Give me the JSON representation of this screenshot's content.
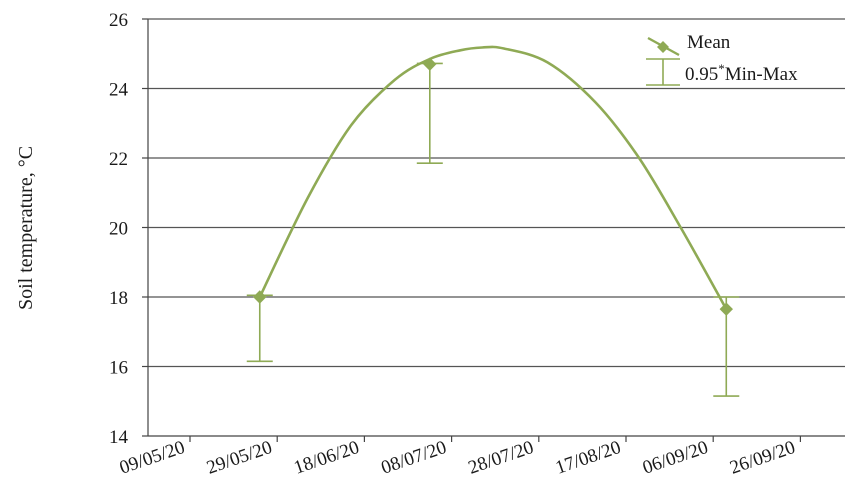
{
  "chart_data": {
    "type": "line",
    "title": "",
    "xlabel": "",
    "ylabel": "Soil temperature, °C",
    "x_tick_labels": [
      "09/05/20",
      "29/05/20",
      "18/06/20",
      "08/07/20",
      "28/07/20",
      "17/08/20",
      "06/09/20",
      "26/09/20"
    ],
    "ylim": [
      14,
      26
    ],
    "y_ticks": [
      14,
      16,
      18,
      20,
      22,
      24,
      26
    ],
    "grid": "horizontal",
    "legend_position": "top-right",
    "legend": [
      {
        "label": "Mean"
      },
      {
        "label_main": "0.95",
        "label_sup": "*",
        "label_rest": "Min-Max"
      }
    ],
    "series": [
      {
        "name": "Mean",
        "x": [
          "2020-05-25",
          "2020-07-03",
          "2020-09-09"
        ],
        "y": [
          18.0,
          24.7,
          17.65
        ],
        "min": [
          16.15,
          21.85,
          15.15
        ],
        "max": [
          18.05,
          24.72,
          18.0
        ]
      }
    ],
    "fitted_curve": {
      "x": [
        "2020-05-25",
        "2020-06-05",
        "2020-06-15",
        "2020-06-25",
        "2020-07-03",
        "2020-07-10",
        "2020-07-15",
        "2020-07-20",
        "2020-07-30",
        "2020-08-10",
        "2020-08-20",
        "2020-08-30",
        "2020-09-09"
      ],
      "y": [
        18.0,
        20.85,
        22.95,
        24.25,
        24.85,
        25.1,
        25.18,
        25.15,
        24.75,
        23.6,
        22.0,
        19.9,
        17.65
      ]
    },
    "colors": {
      "series": "#8faa55",
      "grid": "#555555",
      "axis": "#444444"
    }
  }
}
